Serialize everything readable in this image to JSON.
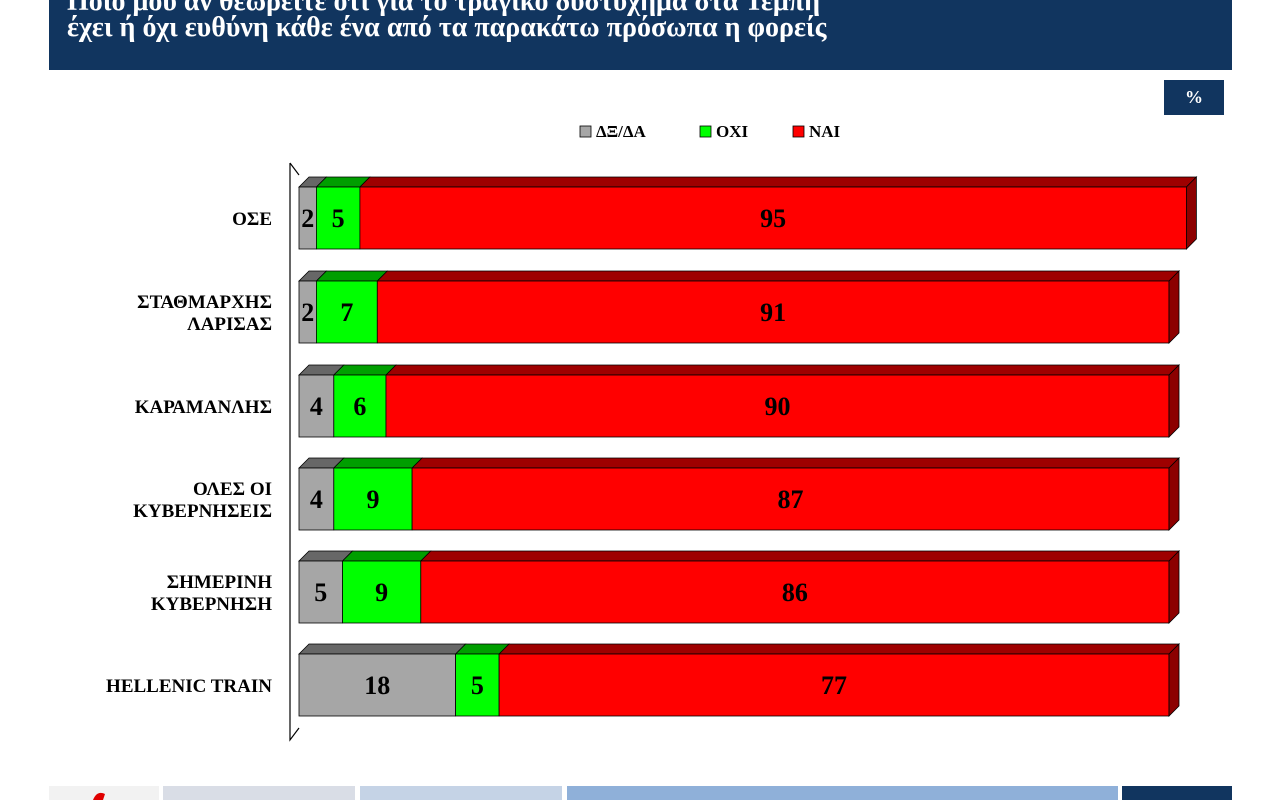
{
  "header": {
    "title_line1": "Ποιο μου αν θεωρείτε ότι για το τραγικό δυστύχημα στα Τέμπη",
    "title_line2": "έχει ή όχι ευθύνη κάθε ένα από τα παρακάτω πρόσωπα η φορείς"
  },
  "unit_badge": "%",
  "colors": {
    "header_bg": "#11355f",
    "dxda": "#a6a6a6",
    "oxi": "#00ff00",
    "nai": "#ff0000"
  },
  "chart_data": {
    "type": "bar",
    "orientation": "horizontal",
    "stacked": true,
    "style": "3d",
    "xlim": [
      0,
      100
    ],
    "legend": {
      "position": "top"
    },
    "categories": [
      [
        "ΟΣΕ"
      ],
      [
        "ΣΤΑΘΜΑΡΧΗΣ",
        "ΛΑΡΙΣΑΣ"
      ],
      [
        "ΚΑΡΑΜΑΝΛΗΣ"
      ],
      [
        "ΟΛΕΣ ΟΙ",
        "ΚΥΒΕΡΝΗΣΕΙΣ"
      ],
      [
        "ΣΗΜΕΡΙΝΗ",
        "ΚΥΒΕΡΝΗΣΗ"
      ],
      [
        "HELLENIC TRAIN"
      ]
    ],
    "series": [
      {
        "name": "ΔΞ/ΔΑ",
        "color": "#a6a6a6",
        "values": [
          2,
          2,
          4,
          4,
          5,
          18
        ]
      },
      {
        "name": "ΟΧΙ",
        "color": "#00ff00",
        "values": [
          5,
          7,
          6,
          9,
          9,
          5
        ]
      },
      {
        "name": "ΝΑΙ",
        "color": "#ff0000",
        "values": [
          95,
          91,
          90,
          87,
          86,
          77
        ]
      }
    ]
  }
}
